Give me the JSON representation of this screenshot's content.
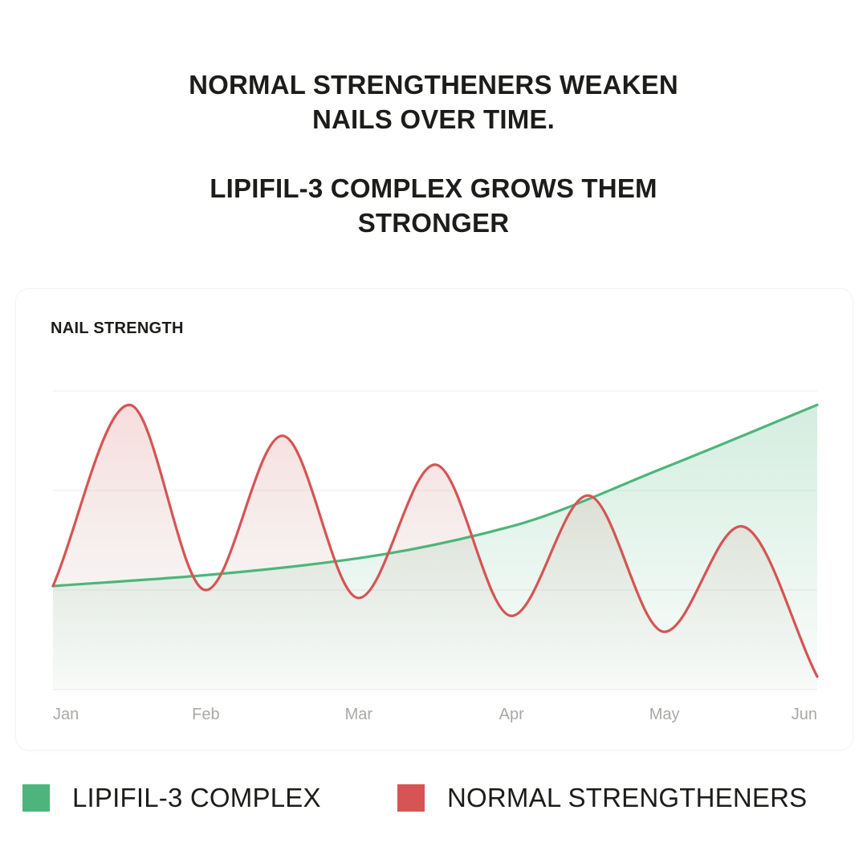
{
  "headline": {
    "line1": "NORMAL STRENGTHENERS WEAKEN",
    "line2": "NAILS OVER TIME.",
    "line3": "LIPIFIL-3 COMPLEX GROWS THEM",
    "line4": "STRONGER"
  },
  "colors": {
    "green": "#4db57b",
    "red": "#d65454",
    "grid": "#ecebe8",
    "tick": "#a9a9a6"
  },
  "chart_data": {
    "type": "line",
    "title": "NAIL STRENGTH",
    "xlabel": "",
    "ylabel": "",
    "categories": [
      "Jan",
      "Feb",
      "Mar",
      "Apr",
      "May",
      "Jun"
    ],
    "x_range": [
      0,
      5
    ],
    "ylim": [
      0,
      3
    ],
    "grid": true,
    "legend_position": "bottom",
    "series": [
      {
        "name": "LIPIFIL-3 COMPLEX",
        "color": "#4db57b",
        "x": [
          0,
          1,
          2,
          3,
          4,
          5
        ],
        "values": [
          1.04,
          1.15,
          1.32,
          1.64,
          2.23,
          2.86
        ]
      },
      {
        "name": "NORMAL STRENGTHENERS",
        "color": "#d65454",
        "x": [
          0,
          0.5,
          1.0,
          1.5,
          2.0,
          2.5,
          3.0,
          3.5,
          4.0,
          4.5,
          5.0
        ],
        "values": [
          1.04,
          2.86,
          1.0,
          2.55,
          0.92,
          2.26,
          0.74,
          1.95,
          0.58,
          1.64,
          0.13
        ]
      }
    ]
  }
}
